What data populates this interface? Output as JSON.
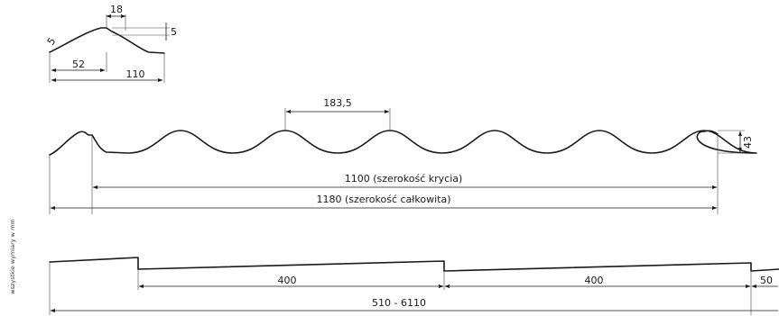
{
  "detail_profile": {
    "labels": {
      "top_width": "18",
      "step_height": "5",
      "radius": "5",
      "half_pitch": "52",
      "module": "110"
    }
  },
  "sheet_profile": {
    "labels": {
      "pitch": "183,5",
      "height": "43",
      "cover_width": "1100 (szerokość krycia)",
      "total_width": "1180 (szerokość całkowita)"
    }
  },
  "side_view": {
    "labels": {
      "step1": "400",
      "step2": "400",
      "end": "50",
      "length": "510 - 6110"
    }
  },
  "side_note": "wszystkie wymiary w mm",
  "colors": {
    "line": "#1a1a1a"
  }
}
